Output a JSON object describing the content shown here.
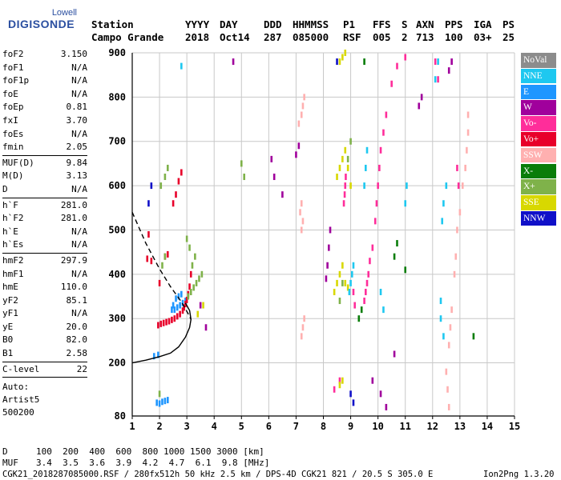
{
  "logo": {
    "top": "Lowell",
    "main": "DIGISONDE"
  },
  "header": {
    "labels": [
      "Station",
      "YYYY",
      "DAY",
      "DDD",
      "HHMMSS",
      "P1",
      "FFS",
      "S",
      "AXN",
      "PPS",
      "IGA",
      "PS"
    ],
    "values": [
      "Campo Grande",
      "2018",
      "Oct14",
      "287",
      "085000",
      "RSF",
      "005",
      "2",
      "713",
      "100",
      "03+",
      "25"
    ]
  },
  "params": [
    {
      "k": "foF2",
      "v": "3.150"
    },
    {
      "k": "foF1",
      "v": "N/A"
    },
    {
      "k": "foF1p",
      "v": "N/A"
    },
    {
      "k": "foE",
      "v": "N/A"
    },
    {
      "k": "foEp",
      "v": "0.81"
    },
    {
      "k": "fxI",
      "v": "3.70"
    },
    {
      "k": "foEs",
      "v": "N/A"
    },
    {
      "k": "fmin",
      "v": "2.05"
    },
    {
      "k": "MUF(D)",
      "v": "9.84"
    },
    {
      "k": "M(D)",
      "v": "3.13"
    },
    {
      "k": "D",
      "v": "N/A"
    },
    {
      "k": "h`F",
      "v": "281.0"
    },
    {
      "k": "h`F2",
      "v": "281.0"
    },
    {
      "k": "h`E",
      "v": "N/A"
    },
    {
      "k": "h`Es",
      "v": "N/A"
    },
    {
      "k": "hmF2",
      "v": "297.9"
    },
    {
      "k": "hmF1",
      "v": "N/A"
    },
    {
      "k": "hmE",
      "v": "110.0"
    },
    {
      "k": "yF2",
      "v": "85.1"
    },
    {
      "k": "yF1",
      "v": "N/A"
    },
    {
      "k": "yE",
      "v": "20.0"
    },
    {
      "k": "B0",
      "v": "82.0"
    },
    {
      "k": "B1",
      "v": "2.58"
    },
    {
      "k": "C-level",
      "v": "22"
    }
  ],
  "auto": {
    "label": "Auto:",
    "name": "Artist5",
    "version": "500200"
  },
  "legend": [
    {
      "label": "NoVal",
      "color": "#8c8c8c"
    },
    {
      "label": "NNE",
      "color": "#1ec8f0"
    },
    {
      "label": "E",
      "color": "#1e96ff"
    },
    {
      "label": "W",
      "color": "#a0009c"
    },
    {
      "label": "Vo-",
      "color": "#ff2d9a"
    },
    {
      "label": "Vo+",
      "color": "#e8002a"
    },
    {
      "label": "SSW",
      "color": "#ffb0b0"
    },
    {
      "label": "X-",
      "color": "#0a7d0a"
    },
    {
      "label": "X+",
      "color": "#7fb24a"
    },
    {
      "label": "SSE",
      "color": "#d8d800"
    },
    {
      "label": "NNW",
      "color": "#1010c8"
    }
  ],
  "footer": {
    "d_label": "D",
    "d_values": "100  200  400  600  800 1000 1500 3000 [km]",
    "muf_label": "MUF",
    "muf_values": "3.4  3.5  3.6  3.9  4.2  4.7  6.1  9.8 [MHz]",
    "file": "CGK21_2018287085000.RSF / 280fx512h 50 kHz 2.5 km / DPS-4D CGK21 821 / 20.5 S 305.0 E",
    "app": "Ion2Png 1.3.20"
  },
  "chart_data": {
    "type": "scatter",
    "x_ticks": [
      1,
      2,
      3,
      4,
      5,
      6,
      7,
      8,
      9,
      10,
      11,
      12,
      13,
      14,
      15
    ],
    "y_ticks": [
      80,
      200,
      300,
      400,
      500,
      600,
      700,
      800,
      900
    ],
    "xlim": [
      1,
      15
    ],
    "ylim": [
      80,
      900
    ],
    "grid": true,
    "series": [
      {
        "name": "E",
        "color": "#1e96ff",
        "points": [
          [
            2.55,
            320
          ],
          [
            2.65,
            325
          ],
          [
            2.75,
            330
          ],
          [
            2.85,
            335
          ],
          [
            2.95,
            340
          ],
          [
            2.6,
            345
          ],
          [
            2.7,
            350
          ],
          [
            2.8,
            355
          ],
          [
            2.5,
            330
          ],
          [
            2.45,
            320
          ],
          [
            1.9,
            110
          ],
          [
            2.0,
            108
          ],
          [
            2.1,
            112
          ],
          [
            2.2,
            114
          ],
          [
            2.3,
            116
          ],
          [
            1.8,
            215
          ],
          [
            1.95,
            218
          ]
        ]
      },
      {
        "name": "Vo+",
        "color": "#e8002a",
        "points": [
          [
            1.95,
            285
          ],
          [
            2.05,
            288
          ],
          [
            2.15,
            290
          ],
          [
            2.25,
            292
          ],
          [
            2.35,
            294
          ],
          [
            2.45,
            297
          ],
          [
            2.55,
            300
          ],
          [
            2.65,
            305
          ],
          [
            2.75,
            310
          ],
          [
            2.85,
            318
          ],
          [
            2.9,
            325
          ],
          [
            2.95,
            333
          ],
          [
            3.0,
            342
          ],
          [
            3.05,
            355
          ],
          [
            3.1,
            372
          ],
          [
            3.15,
            400
          ],
          [
            2.2,
            440
          ],
          [
            2.3,
            445
          ],
          [
            1.6,
            490
          ],
          [
            2.0,
            380
          ],
          [
            2.5,
            560
          ],
          [
            2.6,
            580
          ],
          [
            2.7,
            610
          ],
          [
            2.8,
            630
          ],
          [
            1.55,
            435
          ],
          [
            1.7,
            430
          ]
        ]
      },
      {
        "name": "Vo-",
        "color": "#ff2d9a",
        "points": [
          [
            8.75,
            560
          ],
          [
            8.78,
            580
          ],
          [
            8.8,
            600
          ],
          [
            8.82,
            620
          ],
          [
            9.5,
            340
          ],
          [
            9.55,
            360
          ],
          [
            9.6,
            380
          ],
          [
            9.65,
            400
          ],
          [
            9.7,
            430
          ],
          [
            9.8,
            460
          ],
          [
            9.9,
            520
          ],
          [
            9.95,
            560
          ],
          [
            10.0,
            600
          ],
          [
            10.05,
            640
          ],
          [
            10.1,
            680
          ],
          [
            10.2,
            720
          ],
          [
            10.3,
            760
          ],
          [
            10.5,
            830
          ],
          [
            10.7,
            870
          ],
          [
            11.0,
            890
          ],
          [
            12.1,
            880
          ],
          [
            12.2,
            840
          ],
          [
            12.9,
            640
          ],
          [
            12.95,
            600
          ],
          [
            9.1,
            360
          ],
          [
            9.15,
            330
          ],
          [
            8.4,
            140
          ],
          [
            8.6,
            160
          ]
        ]
      },
      {
        "name": "W",
        "color": "#a0009c",
        "points": [
          [
            8.1,
            390
          ],
          [
            8.15,
            420
          ],
          [
            8.2,
            460
          ],
          [
            8.25,
            500
          ],
          [
            6.2,
            620
          ],
          [
            6.1,
            660
          ],
          [
            4.7,
            880
          ],
          [
            7.0,
            670
          ],
          [
            7.1,
            690
          ],
          [
            11.5,
            780
          ],
          [
            11.6,
            800
          ],
          [
            12.6,
            860
          ],
          [
            12.7,
            880
          ],
          [
            6.5,
            580
          ],
          [
            3.5,
            330
          ],
          [
            3.7,
            280
          ],
          [
            9.8,
            160
          ],
          [
            10.1,
            130
          ],
          [
            10.3,
            100
          ],
          [
            10.6,
            220
          ]
        ]
      },
      {
        "name": "SSW",
        "color": "#ffb0b0",
        "points": [
          [
            7.2,
            260
          ],
          [
            7.25,
            280
          ],
          [
            7.3,
            300
          ],
          [
            7.2,
            500
          ],
          [
            7.25,
            520
          ],
          [
            7.15,
            540
          ],
          [
            7.2,
            560
          ],
          [
            7.2,
            760
          ],
          [
            7.25,
            780
          ],
          [
            7.3,
            800
          ],
          [
            7.1,
            740
          ],
          [
            12.6,
            240
          ],
          [
            12.65,
            280
          ],
          [
            12.7,
            320
          ],
          [
            12.8,
            400
          ],
          [
            12.85,
            440
          ],
          [
            12.9,
            500
          ],
          [
            13.0,
            540
          ],
          [
            13.1,
            600
          ],
          [
            13.2,
            640
          ],
          [
            13.25,
            680
          ],
          [
            13.3,
            720
          ],
          [
            12.5,
            180
          ],
          [
            12.55,
            140
          ],
          [
            12.6,
            100
          ],
          [
            13.3,
            760
          ]
        ]
      },
      {
        "name": "X+",
        "color": "#7fb24a",
        "points": [
          [
            3.05,
            350
          ],
          [
            3.15,
            360
          ],
          [
            3.25,
            370
          ],
          [
            3.35,
            380
          ],
          [
            3.45,
            390
          ],
          [
            3.55,
            400
          ],
          [
            3.2,
            420
          ],
          [
            3.3,
            440
          ],
          [
            3.1,
            460
          ],
          [
            3.0,
            480
          ],
          [
            2.1,
            420
          ],
          [
            2.2,
            440
          ],
          [
            2.05,
            600
          ],
          [
            2.2,
            620
          ],
          [
            2.3,
            640
          ],
          [
            5.0,
            650
          ],
          [
            5.1,
            620
          ],
          [
            8.6,
            340
          ],
          [
            8.7,
            380
          ],
          [
            8.9,
            660
          ],
          [
            9.0,
            700
          ],
          [
            2.0,
            130
          ]
        ]
      },
      {
        "name": "SSE",
        "color": "#d8d800",
        "points": [
          [
            8.4,
            360
          ],
          [
            8.5,
            380
          ],
          [
            8.6,
            400
          ],
          [
            8.7,
            420
          ],
          [
            8.8,
            380
          ],
          [
            8.9,
            370
          ],
          [
            8.5,
            620
          ],
          [
            8.6,
            640
          ],
          [
            8.7,
            660
          ],
          [
            8.8,
            680
          ],
          [
            8.9,
            640
          ],
          [
            9.0,
            600
          ],
          [
            8.6,
            880
          ],
          [
            8.7,
            890
          ],
          [
            8.8,
            900
          ],
          [
            3.4,
            310
          ],
          [
            3.6,
            330
          ],
          [
            8.6,
            150
          ],
          [
            8.7,
            160
          ]
        ]
      },
      {
        "name": "NNE",
        "color": "#1ec8f0",
        "points": [
          [
            9.0,
            380
          ],
          [
            9.05,
            400
          ],
          [
            9.1,
            420
          ],
          [
            8.95,
            360
          ],
          [
            9.5,
            600
          ],
          [
            9.55,
            640
          ],
          [
            9.6,
            680
          ],
          [
            10.1,
            360
          ],
          [
            10.2,
            320
          ],
          [
            11.0,
            560
          ],
          [
            11.05,
            600
          ],
          [
            12.1,
            840
          ],
          [
            12.2,
            880
          ],
          [
            12.35,
            520
          ],
          [
            12.4,
            560
          ],
          [
            12.5,
            600
          ],
          [
            12.3,
            300
          ],
          [
            12.4,
            260
          ],
          [
            12.3,
            340
          ],
          [
            2.8,
            870
          ]
        ]
      },
      {
        "name": "X-",
        "color": "#0a7d0a",
        "points": [
          [
            9.3,
            300
          ],
          [
            9.4,
            320
          ],
          [
            9.5,
            880
          ],
          [
            10.6,
            440
          ],
          [
            10.7,
            470
          ],
          [
            11.0,
            410
          ],
          [
            13.5,
            260
          ]
        ]
      },
      {
        "name": "NNW",
        "color": "#1010c8",
        "points": [
          [
            1.7,
            600
          ],
          [
            1.6,
            560
          ],
          [
            8.5,
            880
          ],
          [
            9.0,
            130
          ],
          [
            9.1,
            110
          ]
        ]
      }
    ],
    "curves": [
      {
        "name": "profile",
        "style": "solid",
        "color": "#000000",
        "points": [
          [
            1.0,
            200
          ],
          [
            1.5,
            206
          ],
          [
            2.0,
            214
          ],
          [
            2.4,
            222
          ],
          [
            2.7,
            236
          ],
          [
            2.95,
            258
          ],
          [
            3.1,
            280
          ],
          [
            3.15,
            298
          ],
          [
            3.1,
            318
          ],
          [
            2.95,
            335
          ]
        ]
      },
      {
        "name": "extrapolation",
        "style": "dashed",
        "color": "#000000",
        "points": [
          [
            1.0,
            540
          ],
          [
            1.5,
            470
          ],
          [
            2.0,
            412
          ],
          [
            2.4,
            372
          ],
          [
            2.8,
            338
          ],
          [
            3.1,
            305
          ],
          [
            3.15,
            298
          ]
        ]
      }
    ]
  }
}
